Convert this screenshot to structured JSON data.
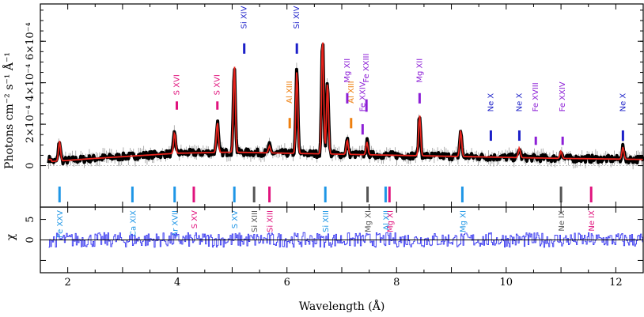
{
  "chart_data": [
    {
      "type": "line",
      "panel": "spectrum",
      "xlabel": "Wavelength (Å)",
      "ylabel": "Photons cm⁻² s⁻¹ Å⁻¹",
      "xlim": [
        1.5,
        12.5
      ],
      "ylim": [
        -2e-07,
        7.8e-07
      ],
      "xticks": [
        2,
        4,
        6,
        8,
        10,
        12
      ],
      "xtick_labels": [
        "2",
        "4",
        "6",
        "8",
        "10",
        "12"
      ],
      "yticks": [
        0,
        2e-07,
        4e-07,
        6e-07
      ],
      "ytick_labels": [
        "0",
        "2×10⁻⁴",
        "4×10⁻⁴",
        "6×10⁻⁴"
      ],
      "series": [
        {
          "color": "#000000",
          "style": "data with error bars"
        },
        {
          "color": "#e8231c",
          "style": "model"
        }
      ],
      "continuum": {
        "x": [
          1.7,
          2.5,
          4.0,
          5.0,
          6.0,
          7.0,
          8.0,
          9.0,
          10.0,
          11.0,
          12.5
        ],
        "y": [
          2e-08,
          3.5e-08,
          6e-08,
          6.5e-08,
          6e-08,
          5.5e-08,
          5e-08,
          4.5e-08,
          4e-08,
          3.5e-08,
          3e-08
        ]
      },
      "peaks": [
        {
          "x": 1.85,
          "y": 1.2e-07
        },
        {
          "x": 3.95,
          "y": 1.6e-07
        },
        {
          "x": 4.73,
          "y": 2.1e-07
        },
        {
          "x": 5.04,
          "y": 4.9e-07
        },
        {
          "x": 5.68,
          "y": 9.5e-08
        },
        {
          "x": 6.18,
          "y": 4.6e-07
        },
        {
          "x": 6.65,
          "y": 6.3e-07
        },
        {
          "x": 6.74,
          "y": 4.1e-07
        },
        {
          "x": 7.1,
          "y": 1.25e-07
        },
        {
          "x": 7.46,
          "y": 1.15e-07
        },
        {
          "x": 8.42,
          "y": 2.45e-07
        },
        {
          "x": 9.17,
          "y": 1.7e-07
        },
        {
          "x": 10.24,
          "y": 8.5e-08
        },
        {
          "x": 11.0,
          "y": 7e-08
        },
        {
          "x": 12.13,
          "y": 9e-08
        }
      ],
      "annotations_top": [
        {
          "label": "Si XIV",
          "x": 5.22,
          "y_label": 6.6e-07,
          "tick_top": 5.9e-07,
          "tick_bottom": 5.4e-07,
          "color": "#1b1fc8"
        },
        {
          "label": "Si XIV",
          "x": 6.18,
          "y_label": 6.6e-07,
          "tick_top": 5.9e-07,
          "tick_bottom": 5.4e-07,
          "color": "#1b1fc8"
        },
        {
          "label": "S XVI",
          "x": 4.73,
          "y_label": 3.4e-07,
          "tick_top": 3.1e-07,
          "tick_bottom": 2.7e-07,
          "color": "#e0137d"
        },
        {
          "label": "S XVI",
          "x": 3.99,
          "y_label": 3.4e-07,
          "tick_top": 3.1e-07,
          "tick_bottom": 2.7e-07,
          "color": "#e0137d"
        },
        {
          "label": "Al XIII",
          "x": 6.05,
          "y_label": 3e-07,
          "tick_top": 2.3e-07,
          "tick_bottom": 1.8e-07,
          "color": "#ee7f0f"
        },
        {
          "label": "Al XIII",
          "x": 7.17,
          "y_label": 3e-07,
          "tick_top": 2.3e-07,
          "tick_bottom": 1.8e-07,
          "color": "#ee7f0f"
        },
        {
          "label": "Mg XII",
          "x": 7.1,
          "y_label": 4e-07,
          "tick_top": 3.5e-07,
          "tick_bottom": 3e-07,
          "color": "#8c1ed6"
        },
        {
          "label": "Fe XXIII",
          "x": 7.45,
          "y_label": 4e-07,
          "tick_top": 3.2e-07,
          "tick_bottom": 2.6e-07,
          "color": "#8c1ed6"
        },
        {
          "label": "Fe XXIV",
          "x": 7.38,
          "y_label": 2.6e-07,
          "tick_top": 2e-07,
          "tick_bottom": 1.5e-07,
          "color": "#8c1ed6"
        },
        {
          "label": "Mg XII",
          "x": 8.42,
          "y_label": 4e-07,
          "tick_top": 3.5e-07,
          "tick_bottom": 3e-07,
          "color": "#8c1ed6"
        },
        {
          "label": "Ne X",
          "x": 9.72,
          "y_label": 2.6e-07,
          "tick_top": 1.7e-07,
          "tick_bottom": 1.2e-07,
          "color": "#1b1fc8"
        },
        {
          "label": "Ne X",
          "x": 10.24,
          "y_label": 2.6e-07,
          "tick_top": 1.7e-07,
          "tick_bottom": 1.2e-07,
          "color": "#1b1fc8"
        },
        {
          "label": "Fe XVIII",
          "x": 10.54,
          "y_label": 2.6e-07,
          "tick_top": 1.4e-07,
          "tick_bottom": 1e-07,
          "color": "#8c1ed6"
        },
        {
          "label": "Fe XXIV",
          "x": 11.03,
          "y_label": 2.6e-07,
          "tick_top": 1.4e-07,
          "tick_bottom": 1e-07,
          "color": "#8c1ed6"
        },
        {
          "label": "Ne X",
          "x": 12.13,
          "y_label": 2.6e-07,
          "tick_top": 1.7e-07,
          "tick_bottom": 1.2e-07,
          "color": "#1b1fc8"
        }
      ],
      "annotations_bottom": [
        {
          "label": "Fe XXV",
          "x": 1.85,
          "color": "#1e96e6"
        },
        {
          "label": "Ca XIX",
          "x": 3.18,
          "color": "#1e96e6"
        },
        {
          "label": "Ar XVII",
          "x": 3.95,
          "color": "#1e96e6"
        },
        {
          "label": "S XV",
          "x": 4.3,
          "color": "#e0137d"
        },
        {
          "label": "S XV",
          "x": 5.04,
          "color": "#1e96e6"
        },
        {
          "label": "Si XIII",
          "x": 5.4,
          "color": "#555555"
        },
        {
          "label": "Si XIII",
          "x": 5.68,
          "color": "#e0137d"
        },
        {
          "label": "Si XIII",
          "x": 6.7,
          "color": "#1e96e6"
        },
        {
          "label": "Mg XI",
          "x": 7.47,
          "color": "#555555"
        },
        {
          "label": "Al XII",
          "x": 7.8,
          "color": "#1e96e6"
        },
        {
          "label": "Mg XI",
          "x": 7.87,
          "color": "#e0137d"
        },
        {
          "label": "Mg XI",
          "x": 9.2,
          "color": "#1e96e6"
        },
        {
          "label": "Ne IX",
          "x": 11.0,
          "color": "#555555"
        },
        {
          "label": "Ne IX",
          "x": 11.55,
          "color": "#e0137d"
        }
      ]
    },
    {
      "type": "line",
      "panel": "residuals",
      "ylabel": "χ",
      "xlim": [
        1.5,
        12.5
      ],
      "ylim": [
        -8,
        8
      ],
      "yticks": [
        -5,
        0,
        5
      ],
      "ytick_labels": [
        "",
        "0",
        "5"
      ],
      "series": [
        {
          "color": "#3b3bf0",
          "style": "step"
        }
      ],
      "zero_line": 0
    }
  ]
}
